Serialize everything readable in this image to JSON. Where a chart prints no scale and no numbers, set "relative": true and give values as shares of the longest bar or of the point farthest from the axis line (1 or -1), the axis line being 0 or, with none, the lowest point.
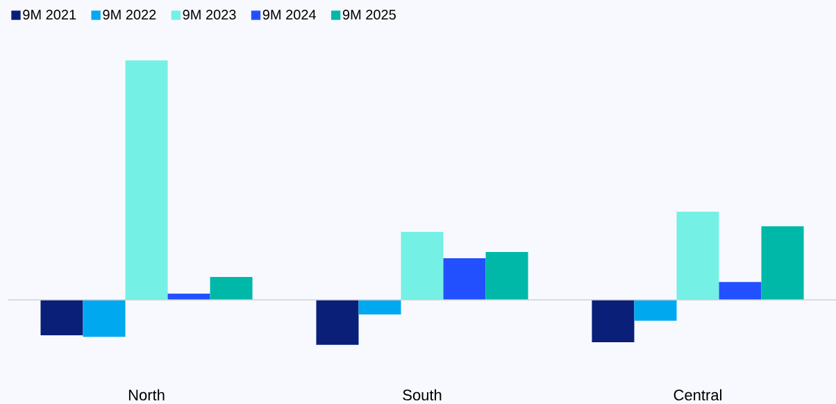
{
  "chart_data": {
    "type": "bar",
    "relative": true,
    "categories": [
      "North",
      "South",
      "Central"
    ],
    "legend": "top left",
    "series": [
      {
        "name": "9M 2021",
        "color": "#0a1f78",
        "values": [
          -0.148,
          -0.188,
          -0.177
        ]
      },
      {
        "name": "9M 2022",
        "color": "#00a8f0",
        "values": [
          -0.154,
          -0.061,
          -0.087
        ]
      },
      {
        "name": "9M 2023",
        "color": "#74f0e4",
        "values": [
          1,
          0.284,
          0.368
        ]
      },
      {
        "name": "9M 2024",
        "color": "#2350ff",
        "values": [
          0.026,
          0.174,
          0.075
        ]
      },
      {
        "name": "9M 2025",
        "color": "#00b8a8",
        "values": [
          0.096,
          0.2,
          0.307
        ]
      }
    ]
  }
}
